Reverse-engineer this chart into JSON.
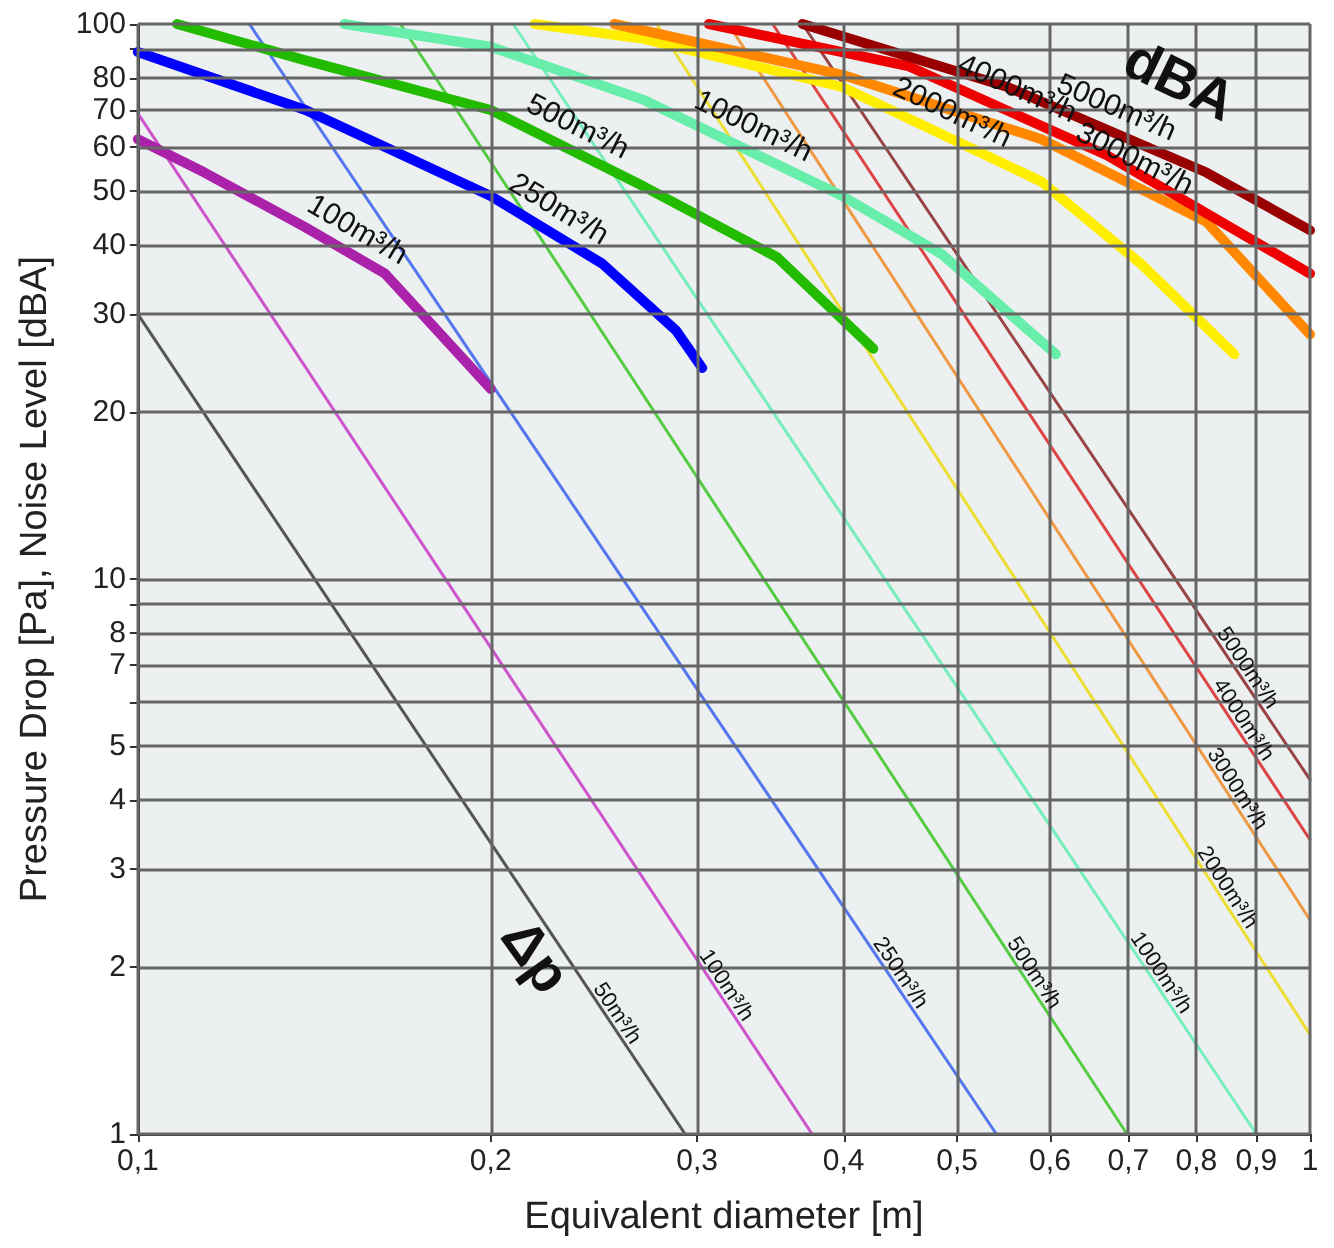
{
  "chart_data": {
    "type": "line",
    "xlabel": "Equivalent diameter [m]",
    "ylabel": "Pressure Drop [Pa], Noise Level [dBA]",
    "log": "xy",
    "grid": true,
    "legend": false,
    "marker": "none",
    "line_style": "solid",
    "xlim": [
      0.1,
      1
    ],
    "ylim": [
      1,
      100
    ],
    "xticks": [
      {
        "value": 0.1,
        "label": "0,1"
      },
      {
        "value": 0.2,
        "label": "0,2"
      },
      {
        "value": 0.3,
        "label": "0,3"
      },
      {
        "value": 0.4,
        "label": "0,4"
      },
      {
        "value": 0.5,
        "label": "0,5"
      },
      {
        "value": 0.6,
        "label": "0,6"
      },
      {
        "value": 0.7,
        "label": "0,7"
      },
      {
        "value": 0.8,
        "label": "0,8"
      },
      {
        "value": 0.9,
        "label": "0,9"
      },
      1
    ],
    "yticks": [
      1,
      2,
      3,
      4,
      5,
      {
        "value": 6,
        "label": null
      },
      7,
      8,
      {
        "value": 9,
        "label": null
      },
      10,
      20,
      30,
      40,
      50,
      60,
      70,
      80,
      {
        "value": 90,
        "label": null
      },
      100
    ],
    "annotations": [
      "dBA",
      "Δp"
    ],
    "series": [
      {
        "name": "50m³/h",
        "color": "#555555",
        "x": [
          0.1,
          0.293
        ],
        "values": [
          30,
          1
        ]
      },
      {
        "name": "100m³/h",
        "color": "#cc55cc",
        "x": [
          0.1,
          0.376
        ],
        "values": [
          69,
          1
        ]
      },
      {
        "name": "250m³/h",
        "color": "#5577ee",
        "x": [
          0.1245,
          0.54
        ],
        "values": [
          100,
          1
        ]
      },
      {
        "name": "500m³/h",
        "color": "#55cc44",
        "x": [
          0.1675,
          0.698
        ],
        "values": [
          100,
          1
        ]
      },
      {
        "name": "1000m³/h",
        "color": "#77eebb",
        "x": [
          0.209,
          0.9
        ],
        "values": [
          100,
          1
        ]
      },
      {
        "name": "2000m³/h",
        "color": "#eedd33",
        "x": [
          0.277,
          1
        ],
        "values": [
          100,
          1.51
        ]
      },
      {
        "name": "3000m³/h",
        "color": "#ee9944",
        "x": [
          0.319,
          1
        ],
        "values": [
          100,
          2.43
        ]
      },
      {
        "name": "4000m³/h",
        "color": "#dd4444",
        "x": [
          0.348,
          1
        ],
        "values": [
          100,
          3.39
        ]
      },
      {
        "name": "5000m³/h",
        "color": "#994444",
        "x": [
          0.369,
          1
        ],
        "values": [
          100,
          4.35
        ]
      },
      {
        "name": "100m³/h",
        "color": "#aa22aa",
        "x": [
          0.1,
          0.114,
          0.139,
          0.1625,
          0.2
        ],
        "values": [
          62,
          54,
          43,
          35.5,
          22
        ]
      },
      {
        "name": "250m³/h",
        "color": "#0000ff",
        "x": [
          0.1,
          0.139,
          0.2,
          0.249,
          0.288,
          0.303
        ],
        "values": [
          89,
          70,
          49,
          37,
          28,
          24
        ]
      },
      {
        "name": "500m³/h",
        "color": "#22bb00",
        "x": [
          0.108,
          0.139,
          0.2,
          0.27,
          0.351,
          0.424
        ],
        "values": [
          100,
          86,
          70,
          51,
          38,
          26
        ]
      },
      {
        "name": "1000m³/h",
        "color": "#66eeaa",
        "x": [
          0.15,
          0.2,
          0.27,
          0.399,
          0.485,
          0.607
        ],
        "values": [
          100,
          91,
          73,
          49,
          38.5,
          25.4
        ]
      },
      {
        "name": "2000m³/h",
        "color": "#ffee00",
        "x": [
          0.218,
          0.27,
          0.399,
          0.59,
          0.717,
          0.862
        ],
        "values": [
          100,
          94,
          77,
          52,
          37,
          25.4
        ]
      },
      {
        "name": "3000m³/h",
        "color": "#ff8800",
        "x": [
          0.255,
          0.399,
          0.59,
          0.816,
          1
        ],
        "values": [
          100,
          81,
          62,
          44,
          27.6
        ]
      },
      {
        "name": "4000m³/h",
        "color": "#ee0000",
        "x": [
          0.307,
          0.454,
          0.671,
          1
        ],
        "values": [
          100,
          84,
          58,
          35.5
        ]
      },
      {
        "name": "5000m³/h",
        "color": "#990000",
        "x": [
          0.369,
          0.552,
          0.816,
          1
        ],
        "values": [
          100,
          77,
          54,
          42.5
        ]
      }
    ]
  }
}
